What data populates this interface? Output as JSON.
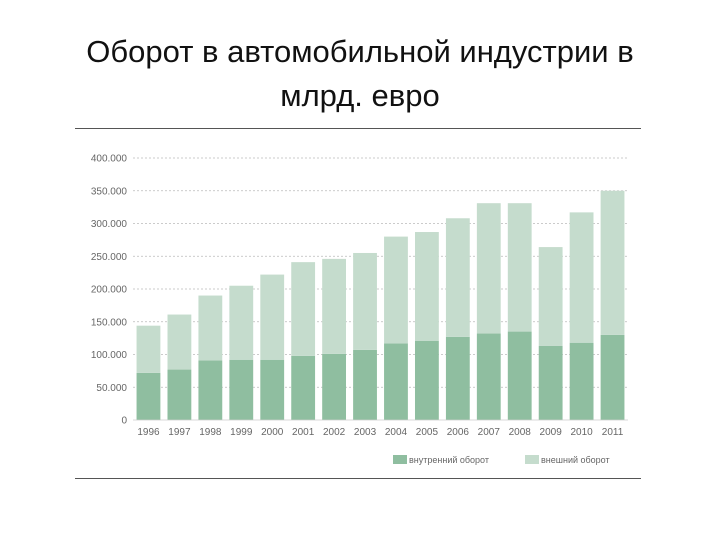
{
  "title": {
    "line1": "Оборот в автомобильной индустрии в",
    "line2": "млрд. евро"
  },
  "chart_data": {
    "type": "bar",
    "stacked": true,
    "categories": [
      "1996",
      "1997",
      "1998",
      "1999",
      "2000",
      "2001",
      "2002",
      "2003",
      "2004",
      "2005",
      "2006",
      "2007",
      "2008",
      "2009",
      "2010",
      "2011"
    ],
    "series": [
      {
        "name": "внутренний оборот",
        "color": "#8fbea0",
        "values": [
          72,
          77,
          91,
          92,
          92,
          98,
          101,
          107,
          117,
          121,
          127,
          132,
          135,
          113,
          118,
          130
        ]
      },
      {
        "name": "внешний оборот",
        "color": "#c5dccd",
        "values": [
          72,
          84,
          99,
          113,
          130,
          143,
          145,
          148,
          163,
          166,
          181,
          199,
          196,
          151,
          199,
          220
        ]
      }
    ],
    "yticks": [
      "400.000",
      "350.000",
      "300.000",
      "250.000",
      "200.000",
      "150.000",
      "100.000",
      "50.000",
      "0"
    ],
    "ylim": [
      0,
      400
    ],
    "grid": true,
    "legend_position": "bottom-right"
  }
}
